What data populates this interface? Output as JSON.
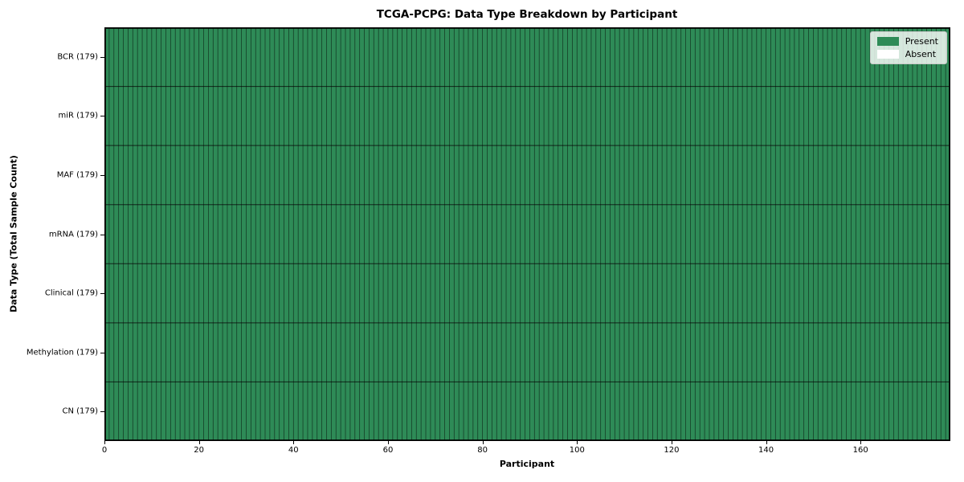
{
  "chart_data": {
    "type": "heatmap",
    "title": "TCGA-PCPG: Data Type Breakdown by Participant",
    "xlabel": "Participant",
    "ylabel": "Data Type (Total Sample Count)",
    "n_participants": 179,
    "xlim": [
      0,
      179
    ],
    "x_ticks": [
      0,
      20,
      40,
      60,
      80,
      100,
      120,
      140,
      160
    ],
    "rows": [
      {
        "label": "BCR (179)",
        "present_count": 179
      },
      {
        "label": "miR (179)",
        "present_count": 179
      },
      {
        "label": "MAF (179)",
        "present_count": 179
      },
      {
        "label": "mRNA (179)",
        "present_count": 179
      },
      {
        "label": "Clinical (179)",
        "present_count": 179
      },
      {
        "label": "Methylation (179)",
        "present_count": 179
      },
      {
        "label": "CN (179)",
        "present_count": 179
      }
    ],
    "legend": [
      {
        "label": "Present",
        "color": "#2e8b57"
      },
      {
        "label": "Absent",
        "color": "#ffffff"
      }
    ],
    "legend_position": "upper right",
    "colors": {
      "present": "#2e8b57",
      "absent": "#ffffff",
      "cell_edge": "rgba(0,0,0,0.55)",
      "row_edge": "rgba(0,0,0,0.75)",
      "border": "#000000"
    },
    "grid": "cell-edges"
  }
}
